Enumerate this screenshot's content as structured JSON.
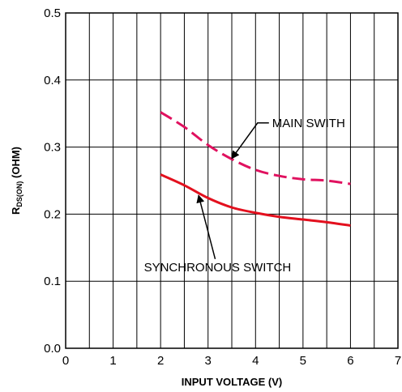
{
  "chart_data": {
    "type": "line",
    "xlabel": "INPUT VOLTAGE (V)",
    "ylabel_main": "R",
    "ylabel_sub": "DS(ON)",
    "ylabel_unit": " (OHM)",
    "xlim": [
      0,
      7
    ],
    "ylim": [
      0.0,
      0.5
    ],
    "x_ticks": [
      "0",
      "1",
      "2",
      "3",
      "4",
      "5",
      "6",
      "7"
    ],
    "y_ticks": [
      "0.0",
      "0.1",
      "0.2",
      "0.3",
      "0.4",
      "0.5"
    ],
    "grid": true,
    "series": [
      {
        "name": "MAIN SWITH",
        "color": "#e0115f",
        "style": "dashed",
        "x": [
          2.0,
          2.5,
          3.0,
          3.5,
          4.0,
          4.5,
          5.0,
          5.5,
          6.0
        ],
        "y": [
          0.352,
          0.33,
          0.303,
          0.282,
          0.266,
          0.257,
          0.252,
          0.25,
          0.245
        ]
      },
      {
        "name": "SYNCHRONOUS SWITCH",
        "color": "#e3101e",
        "style": "solid",
        "x": [
          2.0,
          2.5,
          3.0,
          3.5,
          4.0,
          4.5,
          5.0,
          5.5,
          6.0
        ],
        "y": [
          0.259,
          0.243,
          0.224,
          0.21,
          0.202,
          0.196,
          0.192,
          0.188,
          0.183
        ]
      }
    ],
    "annotations": [
      {
        "text": "MAIN SWITH",
        "label_x": 4.35,
        "label_y": 0.33,
        "arrow_to_x": 3.5,
        "arrow_to_y": 0.283
      },
      {
        "text": "SYNCHRONOUS SWITCH",
        "label_x": 3.2,
        "label_y": 0.115,
        "arrow_to_x": 2.8,
        "arrow_to_y": 0.228
      }
    ]
  }
}
